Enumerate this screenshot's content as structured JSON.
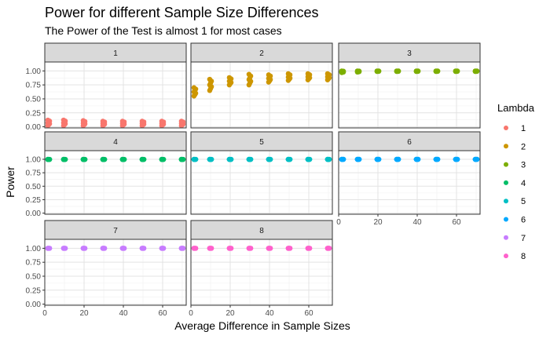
{
  "chart_data": {
    "type": "scatter",
    "title": "Power for different Sample Size Differences",
    "subtitle": "The Power of the Test is almost 1 for most cases",
    "xlabel": "Average Difference in Sample Sizes",
    "ylabel": "Power",
    "xlim": [
      0,
      72
    ],
    "ylim": [
      -0.02,
      1.16
    ],
    "x_ticks": [
      0,
      20,
      40,
      60
    ],
    "x_tick_labels": [
      "0",
      "20",
      "40",
      "60"
    ],
    "y_ticks": [
      0,
      0.25,
      0.5,
      0.75,
      1
    ],
    "y_tick_labels": [
      "0.00",
      "0.25",
      "0.50",
      "0.75",
      "1.00"
    ],
    "grid": true,
    "facet_by": "Lambda",
    "facet_labels": [
      "1",
      "2",
      "3",
      "4",
      "5",
      "6",
      "7",
      "8"
    ],
    "facet_layout": "3x3 grid, free y scale per row",
    "legend": {
      "title": "Lambda",
      "placement": "right",
      "labels": [
        "1",
        "2",
        "3",
        "4",
        "5",
        "6",
        "7",
        "8"
      ],
      "colors": [
        "#F8766D",
        "#CD9600",
        "#7CAE00",
        "#00BE67",
        "#00BFC4",
        "#00A9FF",
        "#C77CFF",
        "#FF61CC"
      ]
    },
    "x_groups": [
      2,
      10,
      20,
      30,
      40,
      50,
      60,
      70
    ],
    "series": [
      {
        "name": "1",
        "ranges": [
          [
            0.02,
            0.12
          ],
          [
            0.02,
            0.12
          ],
          [
            0.02,
            0.11
          ],
          [
            0.02,
            0.1
          ],
          [
            0.02,
            0.1
          ],
          [
            0.02,
            0.1
          ],
          [
            0.02,
            0.1
          ],
          [
            0.02,
            0.1
          ]
        ]
      },
      {
        "name": "2",
        "ranges": [
          [
            0.55,
            0.7
          ],
          [
            0.65,
            0.85
          ],
          [
            0.75,
            0.88
          ],
          [
            0.75,
            0.94
          ],
          [
            0.8,
            0.93
          ],
          [
            0.83,
            0.95
          ],
          [
            0.84,
            0.95
          ],
          [
            0.84,
            0.95
          ]
        ]
      },
      {
        "name": "3",
        "ranges": [
          [
            0.97,
            1.0
          ],
          [
            0.98,
            1.0
          ],
          [
            0.99,
            1.0
          ],
          [
            0.99,
            1.0
          ],
          [
            0.99,
            1.0
          ],
          [
            0.99,
            1.0
          ],
          [
            0.99,
            1.0
          ],
          [
            0.99,
            1.0
          ]
        ]
      },
      {
        "name": "4",
        "ranges": [
          [
            0.995,
            1.0
          ],
          [
            0.995,
            1.0
          ],
          [
            0.995,
            1.0
          ],
          [
            0.995,
            1.0
          ],
          [
            0.995,
            1.0
          ],
          [
            0.995,
            1.0
          ],
          [
            0.995,
            1.0
          ],
          [
            0.995,
            1.0
          ]
        ]
      },
      {
        "name": "5",
        "ranges": [
          [
            0.997,
            1.0
          ],
          [
            0.997,
            1.0
          ],
          [
            0.997,
            1.0
          ],
          [
            0.997,
            1.0
          ],
          [
            0.997,
            1.0
          ],
          [
            0.997,
            1.0
          ],
          [
            0.997,
            1.0
          ],
          [
            0.997,
            1.0
          ]
        ]
      },
      {
        "name": "6",
        "ranges": [
          [
            0.998,
            1.0
          ],
          [
            0.998,
            1.0
          ],
          [
            0.998,
            1.0
          ],
          [
            0.998,
            1.0
          ],
          [
            0.998,
            1.0
          ],
          [
            0.998,
            1.0
          ],
          [
            0.998,
            1.0
          ],
          [
            0.998,
            1.0
          ]
        ]
      },
      {
        "name": "7",
        "ranges": [
          [
            0.999,
            1.0
          ],
          [
            0.999,
            1.0
          ],
          [
            0.999,
            1.0
          ],
          [
            0.999,
            1.0
          ],
          [
            0.999,
            1.0
          ],
          [
            0.999,
            1.0
          ],
          [
            0.999,
            1.0
          ],
          [
            0.999,
            1.0
          ]
        ]
      },
      {
        "name": "8",
        "ranges": [
          [
            0.999,
            1.0
          ],
          [
            0.999,
            1.0
          ],
          [
            0.999,
            1.0
          ],
          [
            0.999,
            1.0
          ],
          [
            0.999,
            1.0
          ],
          [
            0.999,
            1.0
          ],
          [
            0.999,
            1.0
          ],
          [
            0.999,
            1.0
          ]
        ]
      }
    ]
  }
}
